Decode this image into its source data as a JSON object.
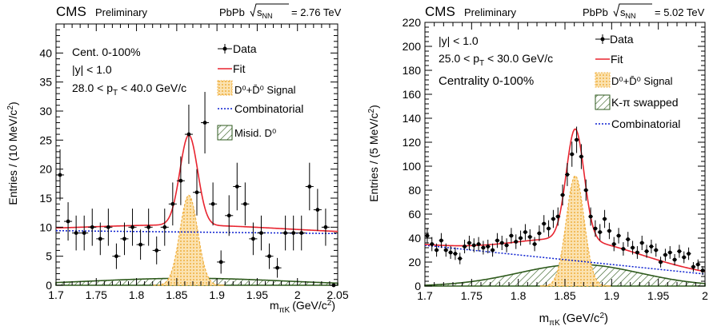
{
  "chart_data": [
    {
      "type": "line",
      "header": {
        "experiment": "CMS",
        "status": "Preliminary",
        "system_prefix": "PbPb",
        "energy_var": "s",
        "energy_sub": "NN",
        "energy_value": "= 2.76 TeV"
      },
      "xlabel": "m",
      "xlabel_sub": "πK",
      "xlabel_unit": "(GeV/c",
      "xlabel_unit_sup": "2",
      "xlabel_unit_end": ")",
      "ylabel": "Entries / (10 MeV/c",
      "ylabel_sup": "2",
      "ylabel_end": ")",
      "xlim": [
        1.7,
        2.05
      ],
      "ylim": [
        0,
        45
      ],
      "xticks": [
        "1.7",
        "1.75",
        "1.8",
        "1.85",
        "1.9",
        "1.95",
        "2",
        "2.05"
      ],
      "yticks": [
        "0",
        "5",
        "10",
        "15",
        "20",
        "25",
        "30",
        "35",
        "40"
      ],
      "cut_labels": [
        "Cent. 0-100%",
        "|y| < 1.0",
        "28.0 < p_T < 40.0 GeV/c"
      ],
      "legend_position": "top-right",
      "legend": [
        "Data",
        "Fit",
        "D⁰+D̄⁰ Signal",
        "Combinatorial",
        "Misid. D⁰"
      ],
      "colors": {
        "data": "#000000",
        "fit": "#e8242f",
        "signal": "#f0b040",
        "combinatorial": "#0b1fd0",
        "swapped": "#2e5a1c"
      },
      "data_points": {
        "x": [
          1.705,
          1.715,
          1.725,
          1.735,
          1.745,
          1.755,
          1.765,
          1.775,
          1.785,
          1.795,
          1.805,
          1.815,
          1.825,
          1.835,
          1.845,
          1.855,
          1.865,
          1.875,
          1.885,
          1.895,
          1.905,
          1.915,
          1.925,
          1.935,
          1.945,
          1.955,
          1.965,
          1.975,
          1.985,
          1.995,
          2.005,
          2.015,
          2.025,
          2.035,
          2.045
        ],
        "y": [
          19,
          11,
          9,
          9,
          10,
          8,
          10,
          5,
          8,
          10,
          7,
          10,
          6,
          10,
          14,
          18,
          26,
          16,
          28,
          14,
          4,
          12,
          17,
          14,
          8,
          9,
          5,
          3,
          9,
          9,
          9,
          17,
          13,
          10,
          0
        ],
        "err": [
          4.4,
          3.3,
          3.0,
          3.0,
          3.2,
          2.8,
          3.2,
          2.2,
          2.8,
          3.2,
          2.6,
          3.2,
          2.4,
          3.2,
          3.7,
          4.2,
          5.1,
          4.0,
          5.3,
          3.7,
          2.0,
          3.5,
          4.1,
          3.7,
          2.8,
          3.0,
          2.2,
          1.7,
          3.0,
          3.0,
          3.0,
          4.1,
          3.6,
          3.2,
          0
        ]
      },
      "components": {
        "combinatorial": {
          "at_x_min": 9.4,
          "at_x_max": 8.9
        },
        "signal": {
          "mean": 1.865,
          "sigma": 0.011,
          "peak": 15.5
        },
        "swapped": {
          "mean": 1.865,
          "sigma": 0.12,
          "peak": 1.2
        }
      }
    },
    {
      "type": "line",
      "header": {
        "experiment": "CMS",
        "status": "Preliminary",
        "system_prefix": "PbPb",
        "energy_var": "s",
        "energy_sub": "NN",
        "energy_value": "= 5.02 TeV"
      },
      "xlabel": "m",
      "xlabel_sub": "πK",
      "xlabel_unit": "(GeV/c",
      "xlabel_unit_sup": "2",
      "xlabel_unit_end": ")",
      "ylabel": "Entries / (5 MeV/c",
      "ylabel_sup": "2",
      "ylabel_end": ")",
      "xlim": [
        1.7,
        2.0
      ],
      "ylim": [
        0,
        220
      ],
      "xticks": [
        "1.7",
        "1.75",
        "1.8",
        "1.85",
        "1.9",
        "1.95",
        "2"
      ],
      "yticks": [
        "0",
        "20",
        "40",
        "60",
        "80",
        "100",
        "120",
        "140",
        "160",
        "180",
        "200",
        "220"
      ],
      "cut_labels": [
        "|y| < 1.0",
        "25.0 < p_T < 30.0 GeV/c",
        "Centrality 0-100%"
      ],
      "legend_position": "top-right",
      "legend": [
        "Data",
        "Fit",
        "D⁰+D̄⁰ Signal",
        "K-π swapped",
        "Combinatorial"
      ],
      "colors": {
        "data": "#000000",
        "fit": "#e8242f",
        "signal": "#f0b040",
        "combinatorial": "#0b1fd0",
        "swapped": "#2e5a1c"
      },
      "data_points": {
        "x": [
          1.7025,
          1.7075,
          1.7125,
          1.7175,
          1.7225,
          1.7275,
          1.7325,
          1.7375,
          1.7425,
          1.7475,
          1.7525,
          1.7575,
          1.7625,
          1.7675,
          1.7725,
          1.7775,
          1.7825,
          1.7875,
          1.7925,
          1.7975,
          1.8025,
          1.8075,
          1.8125,
          1.8175,
          1.8225,
          1.8275,
          1.8325,
          1.8375,
          1.8425,
          1.8475,
          1.8525,
          1.8575,
          1.8625,
          1.8675,
          1.8725,
          1.8775,
          1.8825,
          1.8875,
          1.8925,
          1.8975,
          1.9025,
          1.9075,
          1.9125,
          1.9175,
          1.9225,
          1.9275,
          1.9325,
          1.9375,
          1.9425,
          1.9475,
          1.9525,
          1.9575,
          1.9625,
          1.9675,
          1.9725,
          1.9775,
          1.9825,
          1.9875,
          1.9925,
          1.9975
        ],
        "y": [
          42,
          35,
          30,
          38,
          30,
          28,
          27,
          23,
          33,
          36,
          34,
          35,
          32,
          33,
          30,
          38,
          36,
          34,
          42,
          37,
          40,
          45,
          41,
          35,
          44,
          52,
          48,
          56,
          58,
          76,
          93,
          110,
          122,
          108,
          80,
          58,
          48,
          45,
          56,
          46,
          35,
          42,
          31,
          39,
          32,
          28,
          36,
          29,
          33,
          30,
          20,
          26,
          28,
          22,
          29,
          24,
          27,
          16,
          18,
          13
        ],
        "err": [
          6.5,
          5.9,
          5.5,
          6.2,
          5.5,
          5.3,
          5.2,
          4.8,
          5.7,
          6.0,
          5.8,
          5.9,
          5.7,
          5.7,
          5.5,
          6.2,
          6.0,
          5.8,
          6.5,
          6.1,
          6.3,
          6.7,
          6.4,
          5.9,
          6.6,
          7.2,
          6.9,
          7.5,
          7.6,
          8.7,
          9.6,
          10.5,
          11.0,
          10.4,
          8.9,
          7.6,
          6.9,
          6.7,
          7.5,
          6.8,
          5.9,
          6.5,
          5.6,
          6.2,
          5.7,
          5.3,
          6.0,
          5.4,
          5.7,
          5.5,
          4.5,
          5.1,
          5.3,
          4.7,
          5.4,
          4.9,
          5.2,
          4.0,
          4.2,
          3.6
        ]
      },
      "components": {
        "combinatorial": {
          "at_x_min": 34,
          "at_x_max": 10
        },
        "signal": {
          "mean": 1.861,
          "sigma": 0.0095,
          "peak": 92
        },
        "swapped": {
          "mean": 1.865,
          "sigma": 0.065,
          "peak": 18
        }
      }
    }
  ]
}
